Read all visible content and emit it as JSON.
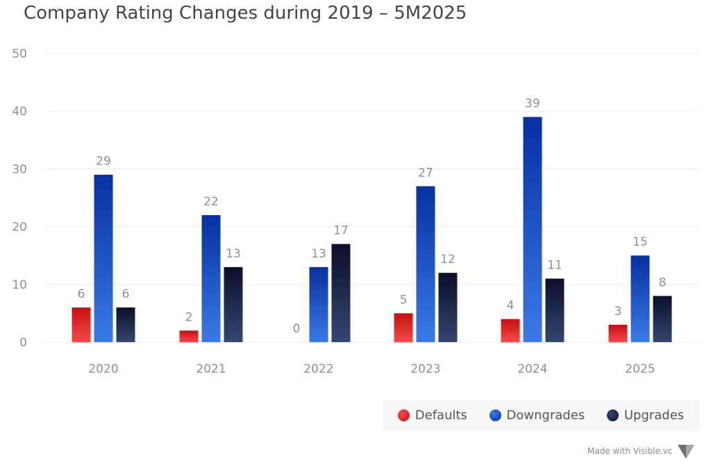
{
  "title": "Company Rating Changes during 2019 – 5M2025",
  "credit": "Made with Visible.vc",
  "colors": {
    "defaults_top": "#c80f0f",
    "defaults_bottom": "#f44a4a",
    "downgrades_top": "#0630a0",
    "downgrades_bottom": "#3a7ae6",
    "upgrades_top": "#0b0f2a",
    "upgrades_bottom": "#354672",
    "grid": "#ececec",
    "axis_text": "#8f8f8f",
    "label_text": "#8f8f8f"
  },
  "chart_data": {
    "type": "bar",
    "title": "Company Rating Changes during 2019 – 5M2025",
    "categories": [
      "2020",
      "2021",
      "2022",
      "2023",
      "2024",
      "2025"
    ],
    "series": [
      {
        "name": "Defaults",
        "values": [
          6,
          2,
          0,
          5,
          4,
          3
        ]
      },
      {
        "name": "Downgrades",
        "values": [
          29,
          22,
          13,
          27,
          39,
          15
        ]
      },
      {
        "name": "Upgrades",
        "values": [
          6,
          13,
          17,
          12,
          11,
          8
        ]
      }
    ],
    "yticks": [
      0,
      10,
      20,
      30,
      40,
      50
    ],
    "ylim": [
      0,
      50
    ],
    "grid": true,
    "legend_position": "bottom-right",
    "data_labels": true
  }
}
